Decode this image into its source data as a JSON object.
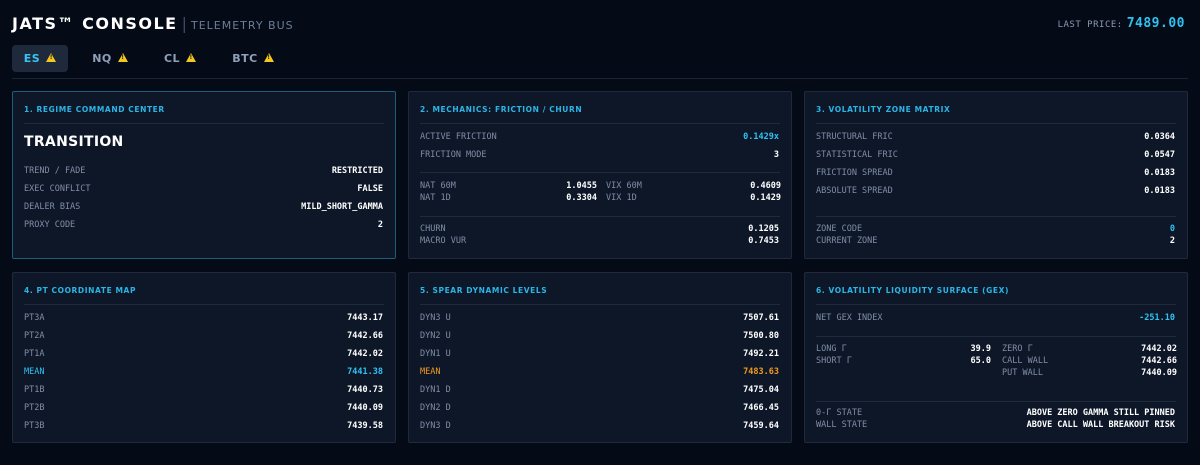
{
  "header": {
    "title": "JATS™ CONSOLE",
    "separator": "|",
    "subtitle": "TELEMETRY BUS",
    "last_price_label": "LAST PRICE:",
    "last_price_value": "7489.00"
  },
  "tabs": [
    {
      "label": "ES",
      "active": true,
      "icon": "warning-icon"
    },
    {
      "label": "NQ",
      "active": false,
      "icon": "warning-icon"
    },
    {
      "label": "CL",
      "active": false,
      "icon": "warning-icon"
    },
    {
      "label": "BTC",
      "active": false,
      "icon": "warning-icon"
    }
  ],
  "colors": {
    "accent": "#2ec2f2",
    "warning": "#f2c81f",
    "mean_orange": "#f39a1e",
    "background": "#050a17",
    "panel": "#0e1728"
  },
  "regime": {
    "title": "1. REGIME COMMAND CENTER",
    "state": "TRANSITION",
    "rows": [
      {
        "label": "TREND / FADE",
        "value": "RESTRICTED"
      },
      {
        "label": "EXEC CONFLICT",
        "value": "FALSE"
      },
      {
        "label": "DEALER BIAS",
        "value": "MILD_SHORT_GAMMA"
      },
      {
        "label": "PROXY CODE",
        "value": "2"
      }
    ]
  },
  "mechanics": {
    "title": "2. MECHANICS: FRICTION / CHURN",
    "active_friction": {
      "label": "ACTIVE FRICTION",
      "value": "0.1429x"
    },
    "friction_mode": {
      "label": "FRICTION MODE",
      "value": "3"
    },
    "nat_60m": {
      "label": "NAT 60M",
      "value": "1.0455"
    },
    "vix_60m": {
      "label": "VIX 60M",
      "value": "0.4609"
    },
    "nat_1d": {
      "label": "NAT 1D",
      "value": "0.3304"
    },
    "vix_1d": {
      "label": "VIX 1D",
      "value": "0.1429"
    },
    "churn": {
      "label": "CHURN",
      "value": "0.1205"
    },
    "macro_vur": {
      "label": "MACRO VUR",
      "value": "0.7453"
    }
  },
  "volatility_zone": {
    "title": "3. VOLATILITY ZONE MATRIX",
    "rows": [
      {
        "label": "STRUCTURAL FRIC",
        "value": "0.0364"
      },
      {
        "label": "STATISTICAL FRIC",
        "value": "0.0547"
      },
      {
        "label": "FRICTION SPREAD",
        "value": "0.0183"
      },
      {
        "label": "ABSOLUTE SPREAD",
        "value": "0.0183"
      }
    ],
    "zone_code": {
      "label": "ZONE CODE",
      "value": "0"
    },
    "current_zone": {
      "label": "CURRENT ZONE",
      "value": "2"
    }
  },
  "pt_map": {
    "title": "4. PT COORDINATE MAP",
    "rows": [
      {
        "label": "PT3A",
        "value": "7443.17"
      },
      {
        "label": "PT2A",
        "value": "7442.66"
      },
      {
        "label": "PT1A",
        "value": "7442.02"
      },
      {
        "label": "MEAN",
        "value": "7441.38"
      },
      {
        "label": "PT1B",
        "value": "7440.73"
      },
      {
        "label": "PT2B",
        "value": "7440.09"
      },
      {
        "label": "PT3B",
        "value": "7439.58"
      }
    ]
  },
  "spear": {
    "title": "5. SPEAR DYNAMIC LEVELS",
    "rows": [
      {
        "label": "DYN3 U",
        "value": "7507.61"
      },
      {
        "label": "DYN2 U",
        "value": "7500.80"
      },
      {
        "label": "DYN1 U",
        "value": "7492.21"
      },
      {
        "label": "MEAN",
        "value": "7483.63"
      },
      {
        "label": "DYN1 D",
        "value": "7475.04"
      },
      {
        "label": "DYN2 D",
        "value": "7466.45"
      },
      {
        "label": "DYN3 D",
        "value": "7459.64"
      }
    ]
  },
  "gex": {
    "title": "6. VOLATILITY LIQUIDITY SURFACE (GEX)",
    "net_gex": {
      "label": "NET GEX INDEX",
      "value": "-251.10"
    },
    "long_gamma": {
      "label": "LONG Γ",
      "value": "39.9"
    },
    "short_gamma": {
      "label": "SHORT Γ",
      "value": "65.0"
    },
    "zero_gamma": {
      "label": "ZERO Γ",
      "value": "7442.02"
    },
    "call_wall": {
      "label": "CALL WALL",
      "value": "7442.66"
    },
    "put_wall": {
      "label": "PUT WALL",
      "value": "7440.09"
    },
    "zero_gamma_state": {
      "label": "0-Γ STATE",
      "value": "ABOVE ZERO GAMMA STILL PINNED"
    },
    "wall_state": {
      "label": "WALL STATE",
      "value": "ABOVE CALL WALL BREAKOUT RISK"
    }
  }
}
